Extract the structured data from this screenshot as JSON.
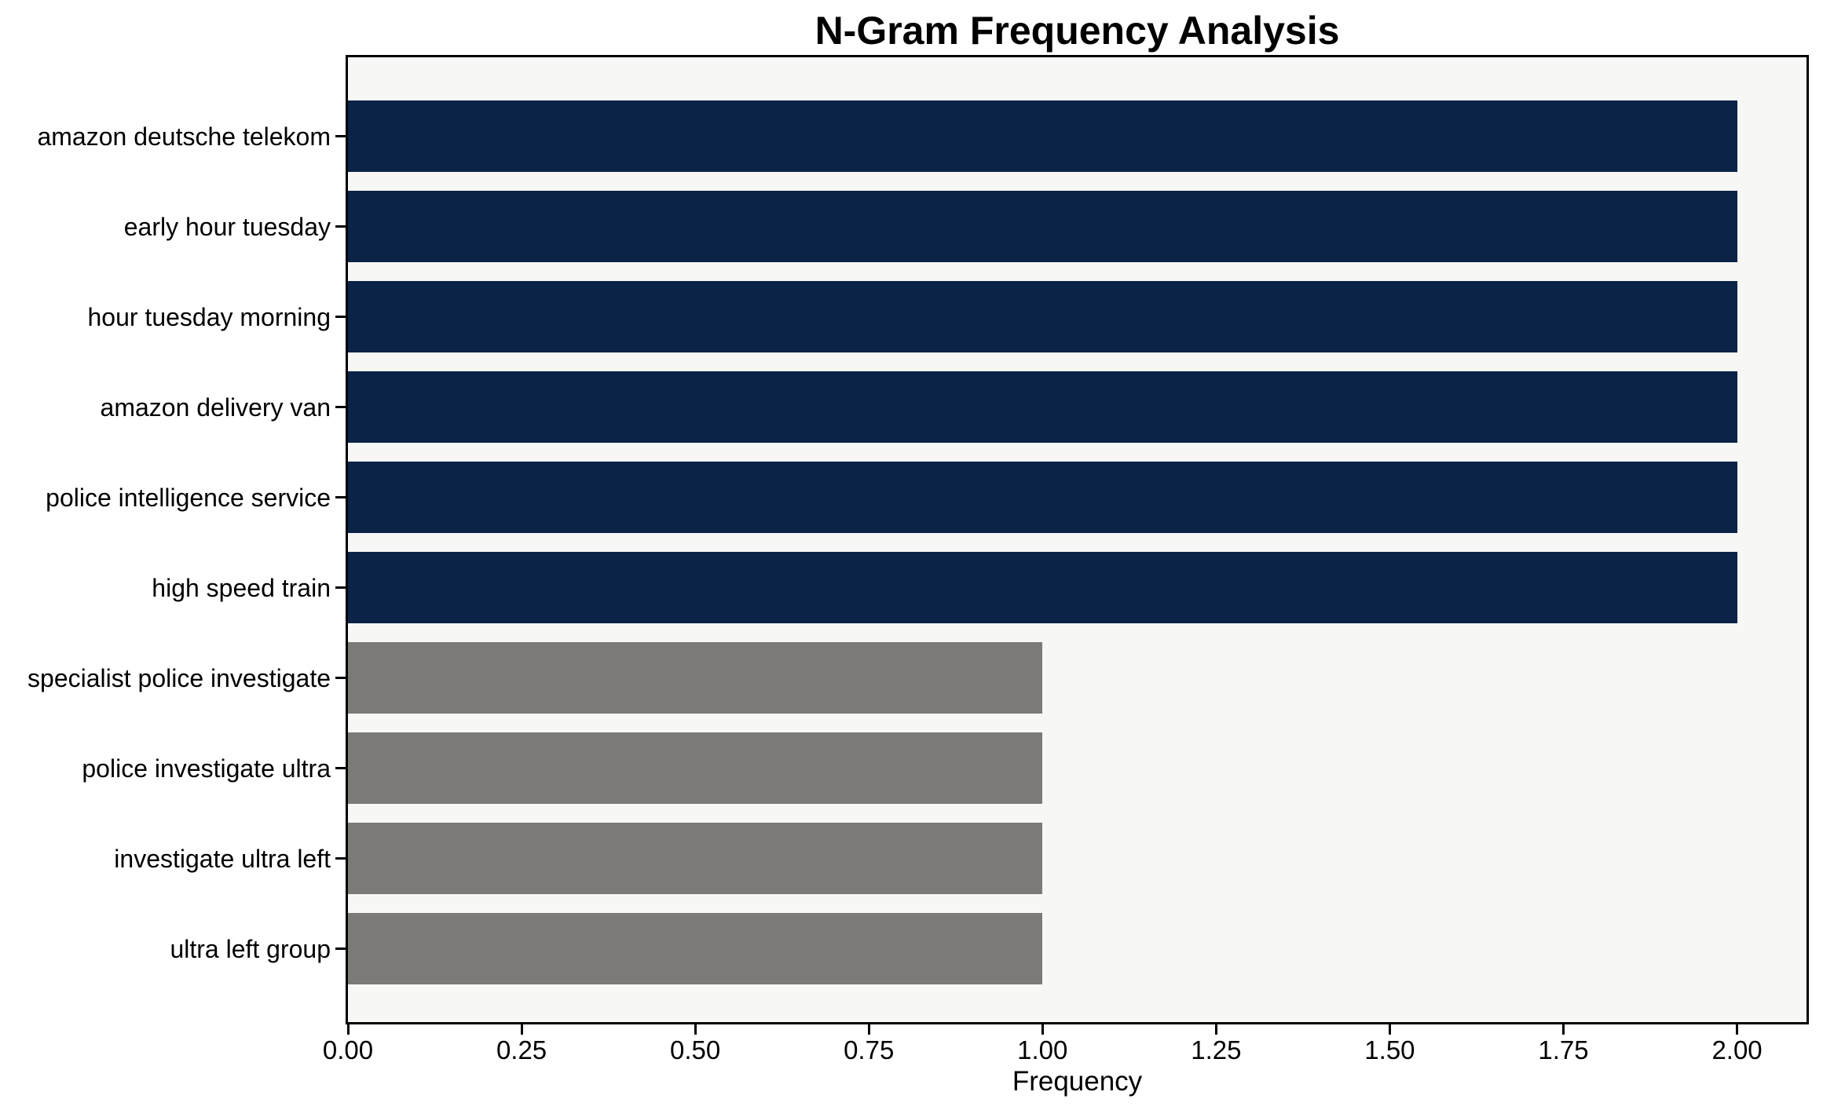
{
  "chart_data": {
    "type": "bar",
    "orientation": "horizontal",
    "title": "N-Gram Frequency Analysis",
    "xlabel": "Frequency",
    "ylabel": "",
    "categories": [
      "amazon deutsche telekom",
      "early hour tuesday",
      "hour tuesday morning",
      "amazon delivery van",
      "police intelligence service",
      "high speed train",
      "specialist police investigate",
      "police investigate ultra",
      "investigate ultra left",
      "ultra left group"
    ],
    "values": [
      2,
      2,
      2,
      2,
      2,
      2,
      1,
      1,
      1,
      1
    ],
    "bar_colors": [
      "#0a2347",
      "#0a2347",
      "#0a2347",
      "#0a2347",
      "#0a2347",
      "#0a2347",
      "#7b7a77",
      "#7b7a77",
      "#7b7a77",
      "#7b7a77"
    ],
    "xlim": [
      0,
      2.1
    ],
    "xticks": [
      0,
      0.25,
      0.5,
      0.75,
      1.0,
      1.25,
      1.5,
      1.75,
      2.0
    ],
    "xtick_labels": [
      "0.00",
      "0.25",
      "0.50",
      "0.75",
      "1.00",
      "1.25",
      "1.50",
      "1.75",
      "2.00"
    ],
    "grid": false,
    "legend": null,
    "colors": {
      "navy": "#0a2347",
      "gray": "#7b7a77",
      "plot_background": "#f7f7f6",
      "figure_background": "#ffffff",
      "spine": "#000000"
    }
  }
}
